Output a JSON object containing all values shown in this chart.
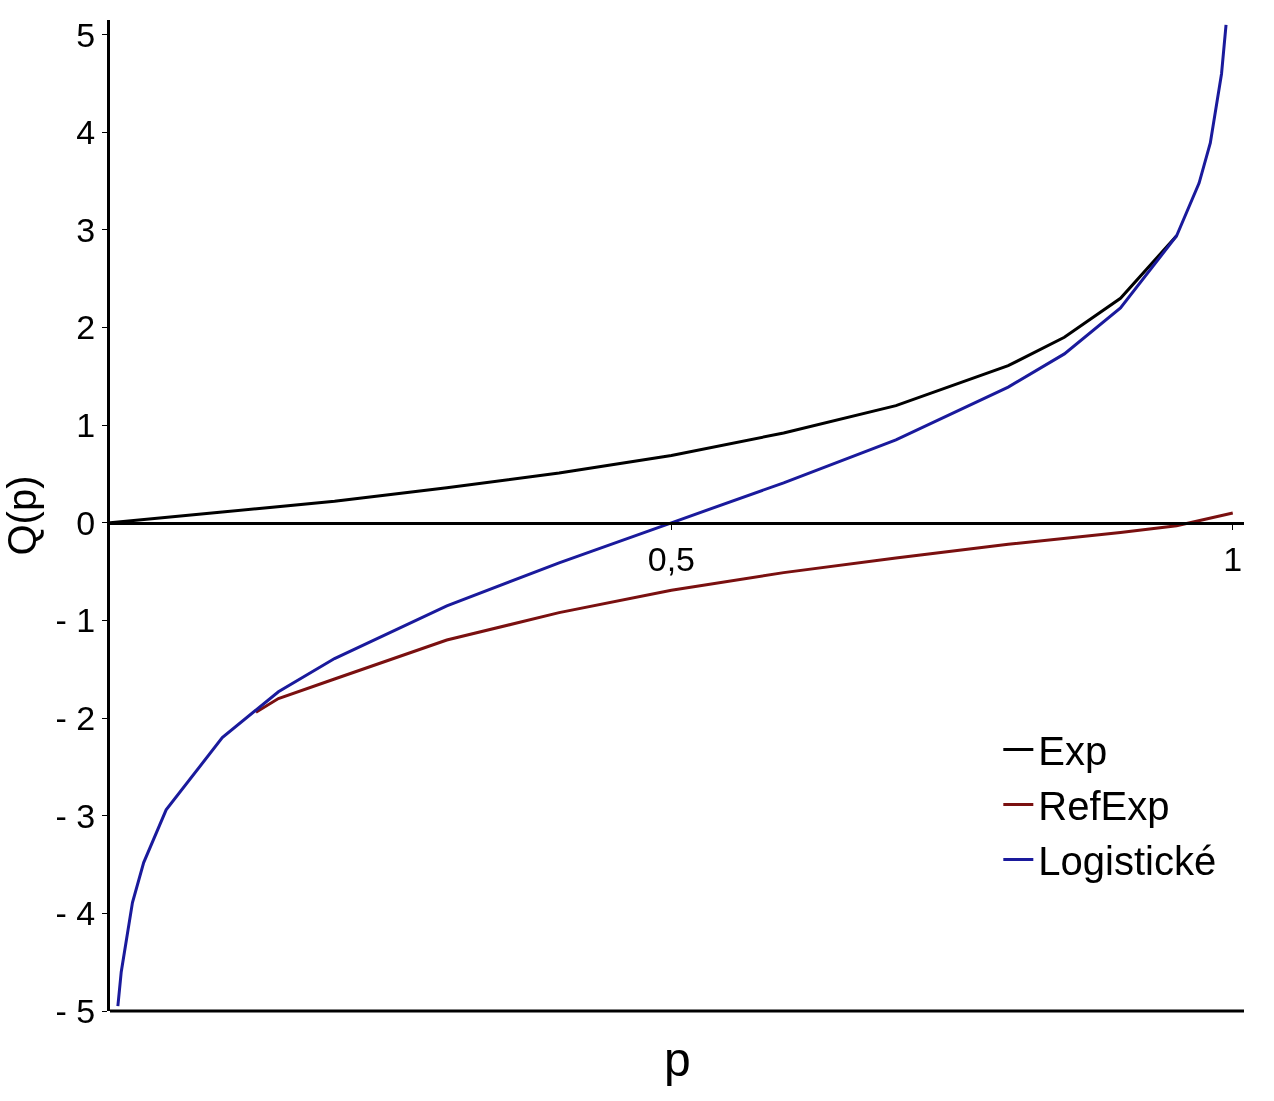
{
  "chart_data": {
    "type": "line",
    "xlabel": "p",
    "ylabel": "Q(p)",
    "xlim": [
      0,
      1.01
    ],
    "ylim": [
      -5,
      5.15
    ],
    "xticks": [
      {
        "value": 0.5,
        "label": "0,5"
      },
      1
    ],
    "yticks": [
      {
        "value": -5,
        "label": "- 5"
      },
      {
        "value": -4,
        "label": "- 4"
      },
      {
        "value": -3,
        "label": "- 3"
      },
      {
        "value": -2,
        "label": "- 2"
      },
      {
        "value": -1,
        "label": "- 1"
      },
      0,
      1,
      2,
      3,
      4,
      5
    ],
    "legend": "bottom right",
    "marker": "none",
    "line_style": "solid",
    "series": [
      {
        "name": "Exp",
        "color": "#000000",
        "x": [
          0,
          0.1,
          0.2,
          0.3,
          0.4,
          0.5,
          0.6,
          0.7,
          0.8,
          0.85,
          0.9,
          0.95
        ],
        "values": [
          0,
          0.11,
          0.22,
          0.36,
          0.51,
          0.69,
          0.92,
          1.2,
          1.61,
          1.9,
          2.3,
          2.94
        ]
      },
      {
        "name": "RefExp",
        "color": "#7a1010",
        "x": [
          0.13,
          0.15,
          0.2,
          0.3,
          0.4,
          0.5,
          0.6,
          0.7,
          0.8,
          0.9,
          0.95,
          1.0
        ],
        "values": [
          -1.94,
          -1.8,
          -1.6,
          -1.2,
          -0.92,
          -0.69,
          -0.51,
          -0.36,
          -0.22,
          -0.1,
          -0.03,
          0.1
        ]
      },
      {
        "name": "Logistické",
        "color": "#1a1a9c",
        "x": [
          0.007,
          0.01,
          0.02,
          0.03,
          0.05,
          0.1,
          0.15,
          0.2,
          0.3,
          0.4,
          0.5,
          0.6,
          0.7,
          0.8,
          0.85,
          0.9,
          0.95,
          0.97,
          0.98,
          0.99,
          0.994
        ],
        "values": [
          -4.95,
          -4.6,
          -3.89,
          -3.48,
          -2.94,
          -2.2,
          -1.73,
          -1.39,
          -0.85,
          -0.41,
          0,
          0.41,
          0.85,
          1.39,
          1.73,
          2.2,
          2.94,
          3.48,
          3.89,
          4.6,
          5.1
        ]
      }
    ]
  }
}
